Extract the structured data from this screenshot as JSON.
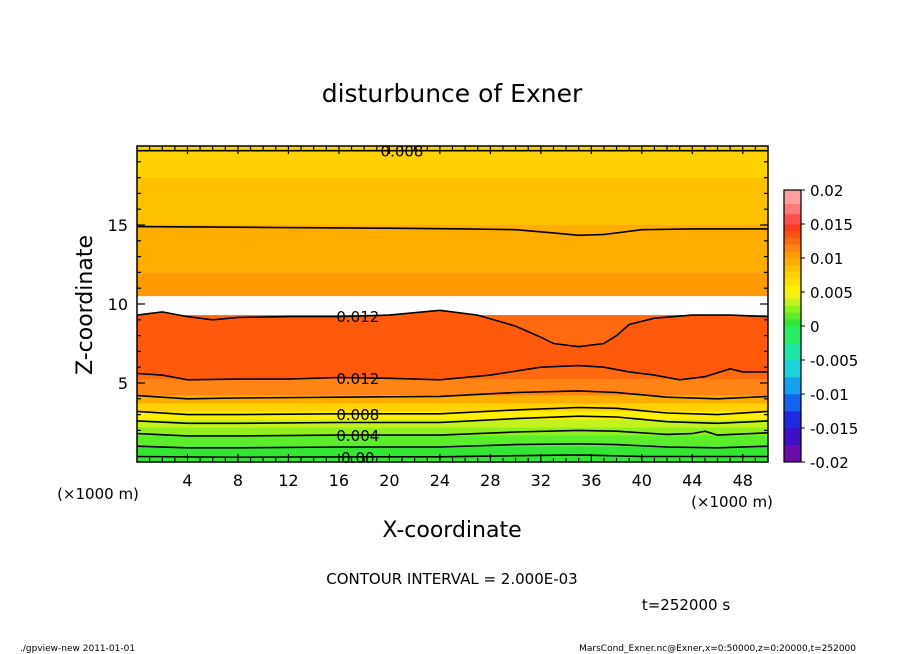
{
  "chart_data": {
    "type": "contour",
    "title": "disturbunce of Exner",
    "xlabel": "X-coordinate",
    "ylabel": "Z-coordinate",
    "x_unit": "(×1000 m)",
    "y_unit": "(×1000 m)",
    "xlim": [
      0,
      50
    ],
    "ylim": [
      0,
      20
    ],
    "x_ticks": [
      4,
      8,
      12,
      16,
      20,
      24,
      28,
      32,
      36,
      40,
      44,
      48
    ],
    "y_ticks": [
      5,
      10,
      15
    ],
    "contour_interval_text": "CONTOUR INTERVAL = 2.000E-03",
    "time_text": "t=252000 s",
    "footer_left": "./gpview-new  2011-01-01",
    "footer_right": "MarsCond_Exner.nc@Exner,x=0:50000,z=0:20000,t=252000",
    "colorbar": {
      "ticks": [
        "0.02",
        "0.015",
        "0.01",
        "0.005",
        "0",
        "-0.005",
        "-0.01",
        "-0.015",
        "-0.02"
      ],
      "min": -0.02,
      "max": 0.02,
      "levels": [
        {
          "from": -0.02,
          "to": -0.0175,
          "color": "#6a0aa8"
        },
        {
          "from": -0.0175,
          "to": -0.015,
          "color": "#3f0fc8"
        },
        {
          "from": -0.015,
          "to": -0.0125,
          "color": "#1e2ae0"
        },
        {
          "from": -0.0125,
          "to": -0.01,
          "color": "#1463ee"
        },
        {
          "from": -0.01,
          "to": -0.0075,
          "color": "#18a0f0"
        },
        {
          "from": -0.0075,
          "to": -0.005,
          "color": "#1ed2dc"
        },
        {
          "from": -0.005,
          "to": -0.0025,
          "color": "#1ee6a6"
        },
        {
          "from": -0.0025,
          "to": 0.0,
          "color": "#2aee62"
        },
        {
          "from": 0.0,
          "to": 0.001,
          "color": "#33e633"
        },
        {
          "from": 0.001,
          "to": 0.002,
          "color": "#5aee2a"
        },
        {
          "from": 0.002,
          "to": 0.003,
          "color": "#8ef01e"
        },
        {
          "from": 0.003,
          "to": 0.004,
          "color": "#c4f21c"
        },
        {
          "from": 0.004,
          "to": 0.005,
          "color": "#eef21a"
        },
        {
          "from": 0.005,
          "to": 0.006,
          "color": "#fff000"
        },
        {
          "from": 0.006,
          "to": 0.007,
          "color": "#ffe000"
        },
        {
          "from": 0.007,
          "to": 0.008,
          "color": "#ffd200"
        },
        {
          "from": 0.008,
          "to": 0.009,
          "color": "#ffc000"
        },
        {
          "from": 0.009,
          "to": 0.01,
          "color": "#ffae00"
        },
        {
          "from": 0.01,
          "to": 0.011,
          "color": "#ff9a00"
        },
        {
          "from": 0.011,
          "to": 0.012,
          "color": "#ff8414"
        },
        {
          "from": 0.012,
          "to": 0.013,
          "color": "#ff6a10"
        },
        {
          "from": 0.013,
          "to": 0.014,
          "color": "#ff5010"
        },
        {
          "from": 0.014,
          "to": 0.015,
          "color": "#ff3c1e"
        },
        {
          "from": 0.015,
          "to": 0.0165,
          "color": "#ff5050"
        },
        {
          "from": 0.0165,
          "to": 0.018,
          "color": "#ff7a7a"
        },
        {
          "from": 0.018,
          "to": 0.02,
          "color": "#ff9e9e"
        }
      ]
    },
    "bands": [
      {
        "z_bottom": 18.0,
        "z_top": 20.0,
        "color": "#ffd200"
      },
      {
        "z_bottom": 15.0,
        "z_top": 18.0,
        "color": "#ffc000"
      },
      {
        "z_bottom": 12.0,
        "z_top": 15.0,
        "color": "#ffae00"
      },
      {
        "z_bottom": 10.5,
        "z_top": 12.0,
        "color": "#ff9a00"
      },
      {
        "z_bottom": 5.2,
        "z_top": 9.3,
        "color": "#ff6a10"
      },
      {
        "z_bottom": 4.2,
        "z_top": 5.2,
        "color": "#ff8414"
      },
      {
        "z_bottom": 3.7,
        "z_top": 4.2,
        "color": "#ffae00"
      },
      {
        "z_bottom": 3.2,
        "z_top": 3.7,
        "color": "#ffd200"
      },
      {
        "z_bottom": 2.7,
        "z_top": 3.2,
        "color": "#fff000"
      },
      {
        "z_bottom": 2.2,
        "z_top": 2.7,
        "color": "#c4f21c"
      },
      {
        "z_bottom": 1.7,
        "z_top": 2.2,
        "color": "#8ef01e"
      },
      {
        "z_bottom": 1.0,
        "z_top": 1.7,
        "color": "#5aee2a"
      },
      {
        "z_bottom": 0.0,
        "z_top": 1.0,
        "color": "#33e633"
      }
    ],
    "contours": [
      {
        "level": "0.008",
        "label": "0.008",
        "label_x": 21.0,
        "points": [
          [
            0,
            19.7
          ],
          [
            50,
            19.7
          ]
        ]
      },
      {
        "level": "0.010",
        "label": "",
        "points": [
          [
            0,
            14.9
          ],
          [
            10,
            14.85
          ],
          [
            20,
            14.8
          ],
          [
            26,
            14.75
          ],
          [
            30,
            14.7
          ],
          [
            33,
            14.5
          ],
          [
            35,
            14.35
          ],
          [
            37,
            14.4
          ],
          [
            40,
            14.7
          ],
          [
            44,
            14.75
          ],
          [
            50,
            14.75
          ]
        ]
      },
      {
        "level": "0.012",
        "label": "0.012",
        "label_x": 17.5,
        "points": [
          [
            0,
            9.3
          ],
          [
            2,
            9.5
          ],
          [
            4,
            9.2
          ],
          [
            6,
            9.0
          ],
          [
            8,
            9.15
          ],
          [
            12,
            9.2
          ],
          [
            16,
            9.2
          ],
          [
            20,
            9.3
          ],
          [
            24,
            9.6
          ],
          [
            27,
            9.3
          ],
          [
            30,
            8.6
          ],
          [
            32,
            7.9
          ],
          [
            33,
            7.5
          ],
          [
            35,
            7.3
          ],
          [
            37,
            7.5
          ],
          [
            38,
            8.0
          ],
          [
            39,
            8.7
          ],
          [
            41,
            9.1
          ],
          [
            44,
            9.3
          ],
          [
            47,
            9.3
          ],
          [
            50,
            9.2
          ]
        ]
      },
      {
        "level": "0.012",
        "label": "0.012",
        "label_x": 17.5,
        "points": [
          [
            0,
            5.6
          ],
          [
            2,
            5.5
          ],
          [
            4,
            5.2
          ],
          [
            8,
            5.25
          ],
          [
            12,
            5.25
          ],
          [
            16,
            5.35
          ],
          [
            20,
            5.3
          ],
          [
            24,
            5.2
          ],
          [
            28,
            5.5
          ],
          [
            32,
            6.0
          ],
          [
            35,
            6.1
          ],
          [
            37,
            6.0
          ],
          [
            39,
            5.7
          ],
          [
            41,
            5.5
          ],
          [
            43,
            5.2
          ],
          [
            45,
            5.4
          ],
          [
            47,
            5.9
          ],
          [
            48,
            5.7
          ],
          [
            50,
            5.7
          ]
        ]
      },
      {
        "level": "0.010",
        "label": "",
        "points": [
          [
            0,
            4.2
          ],
          [
            4,
            4.0
          ],
          [
            8,
            4.05
          ],
          [
            16,
            4.1
          ],
          [
            24,
            4.15
          ],
          [
            30,
            4.4
          ],
          [
            35,
            4.5
          ],
          [
            38,
            4.4
          ],
          [
            42,
            4.1
          ],
          [
            46,
            4.0
          ],
          [
            50,
            4.15
          ]
        ]
      },
      {
        "level": "0.008",
        "label": "0.008",
        "label_x": 17.5,
        "points": [
          [
            0,
            3.2
          ],
          [
            4,
            3.0
          ],
          [
            8,
            3.0
          ],
          [
            16,
            3.05
          ],
          [
            24,
            3.05
          ],
          [
            30,
            3.3
          ],
          [
            35,
            3.45
          ],
          [
            38,
            3.4
          ],
          [
            42,
            3.1
          ],
          [
            46,
            3.0
          ],
          [
            50,
            3.2
          ]
        ]
      },
      {
        "level": "0.006",
        "label": "",
        "points": [
          [
            0,
            2.6
          ],
          [
            4,
            2.45
          ],
          [
            8,
            2.45
          ],
          [
            16,
            2.5
          ],
          [
            24,
            2.5
          ],
          [
            30,
            2.75
          ],
          [
            35,
            2.9
          ],
          [
            38,
            2.85
          ],
          [
            42,
            2.55
          ],
          [
            46,
            2.45
          ],
          [
            50,
            2.6
          ]
        ]
      },
      {
        "level": "0.004",
        "label": "0.004",
        "label_x": 17.5,
        "points": [
          [
            0,
            1.8
          ],
          [
            4,
            1.65
          ],
          [
            8,
            1.65
          ],
          [
            16,
            1.7
          ],
          [
            24,
            1.7
          ],
          [
            30,
            1.9
          ],
          [
            35,
            2.0
          ],
          [
            38,
            1.95
          ],
          [
            42,
            1.75
          ],
          [
            44,
            1.8
          ],
          [
            45,
            1.95
          ],
          [
            46,
            1.7
          ],
          [
            50,
            1.85
          ]
        ]
      },
      {
        "level": "0.002",
        "label": "",
        "points": [
          [
            0,
            1.0
          ],
          [
            4,
            0.9
          ],
          [
            8,
            0.9
          ],
          [
            16,
            0.95
          ],
          [
            24,
            0.95
          ],
          [
            30,
            1.1
          ],
          [
            35,
            1.15
          ],
          [
            38,
            1.1
          ],
          [
            42,
            0.95
          ],
          [
            46,
            0.9
          ],
          [
            50,
            1.0
          ]
        ]
      },
      {
        "level": "0.000",
        "label": "0.00",
        "label_x": 17.5,
        "points": [
          [
            0,
            0.35
          ],
          [
            8,
            0.3
          ],
          [
            16,
            0.32
          ],
          [
            24,
            0.33
          ],
          [
            30,
            0.4
          ],
          [
            35,
            0.45
          ],
          [
            40,
            0.35
          ],
          [
            50,
            0.35
          ]
        ]
      }
    ]
  }
}
